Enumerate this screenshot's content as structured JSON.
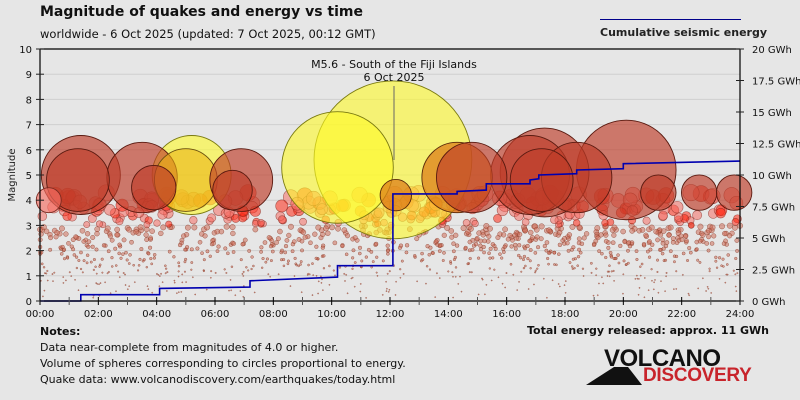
{
  "header": {
    "title": "Magnitude of quakes and energy vs time",
    "subtitle": "worldwide -  6 Oct 2025 (updated: 7 Oct 2025, 00:12 GMT)"
  },
  "legend": {
    "label": "Cumulative seismic energy",
    "line_color": "#00008b"
  },
  "annotation": {
    "line1": "M5.6 - South of the Fiji Islands",
    "line2": "6 Oct 2025"
  },
  "footer": {
    "notes_heading": "Notes:",
    "notes": [
      "Data near-complete from magnitudes of 4.0 or higher.",
      "Volume of spheres corresponding to circles proportional to energy.",
      "Quake data: www.volcanodiscovery.com/earthquakes/today.html"
    ],
    "total_energy": "Total energy released: approx. 11 GWh",
    "logo_top": "VOLCANO",
    "logo_bottom": "DISCOVERY"
  },
  "chart_data": {
    "type": "scatter",
    "title": "Magnitude of quakes and energy vs time",
    "xlabel": "",
    "ylabel": "Magnitude",
    "y2label": "Cumulative seismic energy",
    "xlim_hours": [
      0,
      24
    ],
    "ylim": [
      0,
      10
    ],
    "y2lim_gwh": [
      0,
      20
    ],
    "grid": true,
    "legend_position": "top-right",
    "x_ticks": [
      "00:00",
      "02:00",
      "04:00",
      "06:00",
      "08:00",
      "10:00",
      "12:00",
      "14:00",
      "16:00",
      "18:00",
      "20:00",
      "22:00",
      "24:00"
    ],
    "y_ticks": [
      "0",
      "1",
      "2",
      "3",
      "4",
      "5",
      "6",
      "7",
      "8",
      "9",
      "10"
    ],
    "y2_ticks": [
      "0 GWh",
      "2.5 GWh",
      "5 GWh",
      "7.5 GWh",
      "10 GWh",
      "12.5 GWh",
      "15 GWh",
      "17.5 GWh",
      "20 GWh"
    ],
    "colors": {
      "recent": "#ffff33",
      "older": "#ff2200",
      "oldest": "#c0392b",
      "small": "#b0553c"
    },
    "major_quakes": [
      {
        "t": 12.1,
        "mag": 5.6,
        "color": "yellow",
        "label": "M5.6 - South of the Fiji Islands"
      },
      {
        "t": 10.2,
        "mag": 5.3,
        "color": "yellow"
      },
      {
        "t": 5.2,
        "mag": 5.0,
        "color": "yellow"
      },
      {
        "t": 5.0,
        "mag": 4.8,
        "color": "gold"
      },
      {
        "t": 1.4,
        "mag": 5.0,
        "color": "darkred"
      },
      {
        "t": 1.3,
        "mag": 4.8,
        "color": "darkred"
      },
      {
        "t": 3.5,
        "mag": 4.9,
        "color": "darkred"
      },
      {
        "t": 3.9,
        "mag": 4.5,
        "color": "darkred"
      },
      {
        "t": 6.9,
        "mag": 4.8,
        "color": "darkred"
      },
      {
        "t": 6.6,
        "mag": 4.4,
        "color": "darkred"
      },
      {
        "t": 14.3,
        "mag": 4.9,
        "color": "orange"
      },
      {
        "t": 14.8,
        "mag": 4.9,
        "color": "darkred"
      },
      {
        "t": 16.8,
        "mag": 5.0,
        "color": "darkred"
      },
      {
        "t": 17.3,
        "mag": 5.1,
        "color": "darkred"
      },
      {
        "t": 17.2,
        "mag": 4.8,
        "color": "darkred"
      },
      {
        "t": 18.4,
        "mag": 4.9,
        "color": "darkred"
      },
      {
        "t": 20.1,
        "mag": 5.2,
        "color": "darkred"
      },
      {
        "t": 21.2,
        "mag": 4.3,
        "color": "darkred"
      },
      {
        "t": 22.6,
        "mag": 4.3,
        "color": "darkred"
      },
      {
        "t": 23.8,
        "mag": 4.3,
        "color": "darkred"
      },
      {
        "t": 12.2,
        "mag": 4.2,
        "color": "orange"
      },
      {
        "t": 0.3,
        "mag": 4.0,
        "color": "red"
      }
    ],
    "cumulative_energy_gwh": [
      [
        0,
        0.0
      ],
      [
        1.4,
        0.0
      ],
      [
        1.4,
        0.5
      ],
      [
        4.1,
        0.5
      ],
      [
        4.1,
        1.0
      ],
      [
        7.2,
        1.1
      ],
      [
        7.2,
        1.6
      ],
      [
        10.2,
        1.9
      ],
      [
        10.2,
        2.8
      ],
      [
        12.1,
        2.8
      ],
      [
        12.1,
        8.5
      ],
      [
        14.3,
        8.5
      ],
      [
        14.3,
        8.7
      ],
      [
        15.3,
        8.8
      ],
      [
        15.3,
        9.3
      ],
      [
        16.8,
        9.3
      ],
      [
        16.8,
        9.6
      ],
      [
        17.1,
        9.7
      ],
      [
        17.1,
        10.0
      ],
      [
        18.4,
        10.1
      ],
      [
        18.4,
        10.4
      ],
      [
        20.0,
        10.5
      ],
      [
        20.0,
        10.9
      ],
      [
        24.0,
        11.1
      ]
    ],
    "total_energy_gwh": 11
  }
}
